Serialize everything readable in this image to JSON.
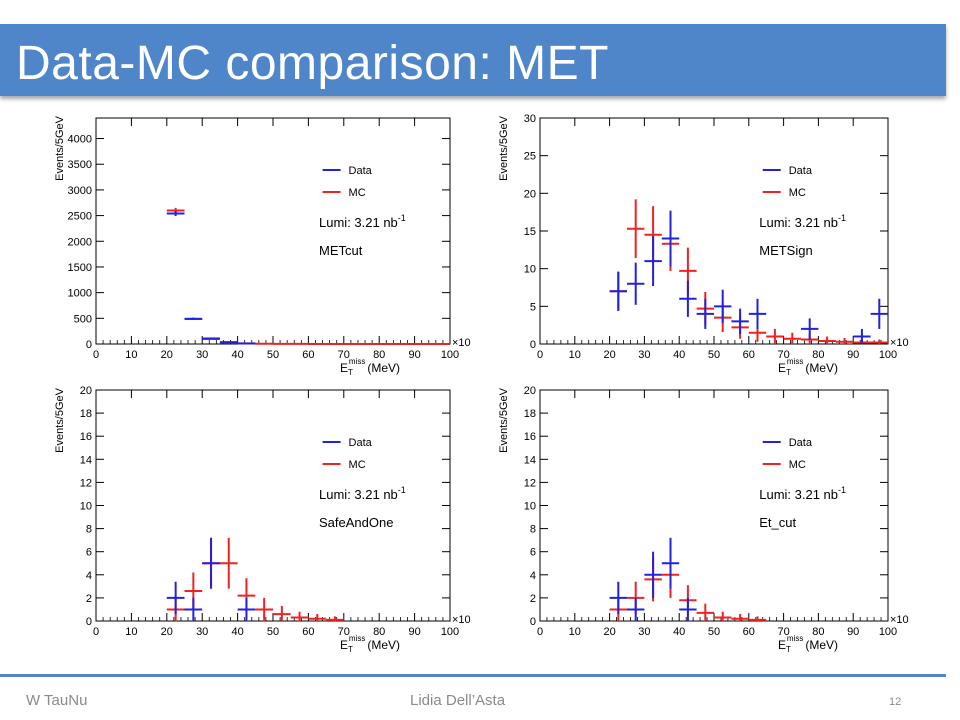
{
  "slide": {
    "title": "Data-MC comparison: MET",
    "footer_left": "W TauNu",
    "footer_center": "Lidia Dell’Asta",
    "page_number": "12",
    "accent_color": "#4f86c9"
  },
  "chart_data": [
    {
      "type": "errorbar",
      "ylabel": "Events/5GeV",
      "xlabel_main": "E",
      "xlabel_sub": "T",
      "xlabel_sup": "miss",
      "xlabel_unit": "(MeV)",
      "x_multiplier": "×10",
      "xlim": [
        0,
        100
      ],
      "ylim": [
        0,
        4400
      ],
      "xticks": [
        0,
        10,
        20,
        30,
        40,
        50,
        60,
        70,
        80,
        90,
        100
      ],
      "yticks": [
        0,
        500,
        1000,
        1500,
        2000,
        2500,
        3000,
        3500,
        4000
      ],
      "legend": [
        {
          "name": "Data",
          "color": "#2222dd"
        },
        {
          "name": "MC",
          "color": "#ee2222"
        }
      ],
      "annotations": [
        "Lumi: 3.21 nb",
        "METcut"
      ],
      "lumi_sup": "-1",
      "series": [
        {
          "name": "Data",
          "color": "#2222dd",
          "x": [
            22.5,
            27.5,
            32.5,
            37.5,
            42.5
          ],
          "y": [
            2540,
            490,
            100,
            35,
            10
          ],
          "yerr": [
            50,
            22,
            10,
            6,
            3
          ]
        },
        {
          "name": "MC",
          "color": "#ee2222",
          "x": [
            22.5,
            27.5,
            32.5,
            37.5,
            42.5,
            47.5,
            52.5,
            57.5,
            62.5,
            67.5,
            72.5,
            77.5,
            82.5,
            87.5,
            92.5,
            97.5
          ],
          "y": [
            2600,
            490,
            110,
            35,
            12,
            5,
            3,
            2,
            1,
            1,
            1,
            1,
            1,
            1,
            1,
            1
          ],
          "yerr": [
            50,
            22,
            10,
            6,
            3,
            2,
            1,
            1,
            1,
            1,
            1,
            1,
            1,
            1,
            1,
            1
          ]
        }
      ]
    },
    {
      "type": "errorbar",
      "ylabel": "Events/5GeV",
      "xlabel_main": "E",
      "xlabel_sub": "T",
      "xlabel_sup": "miss",
      "xlabel_unit": "(MeV)",
      "x_multiplier": "×10",
      "xlim": [
        0,
        100
      ],
      "ylim": [
        0,
        30
      ],
      "xticks": [
        0,
        10,
        20,
        30,
        40,
        50,
        60,
        70,
        80,
        90,
        100
      ],
      "yticks": [
        0,
        5,
        10,
        15,
        20,
        25,
        30
      ],
      "legend": [
        {
          "name": "Data",
          "color": "#2222dd"
        },
        {
          "name": "MC",
          "color": "#ee2222"
        }
      ],
      "annotations": [
        "Lumi: 3.21 nb",
        "METSign"
      ],
      "lumi_sup": "-1",
      "series": [
        {
          "name": "Data",
          "color": "#2222dd",
          "x": [
            22.5,
            27.5,
            32.5,
            37.5,
            42.5,
            47.5,
            52.5,
            57.5,
            62.5,
            77.5,
            92.5,
            97.5
          ],
          "y": [
            7,
            8,
            11,
            14,
            6,
            4,
            5,
            3,
            4,
            2,
            1,
            4
          ],
          "yerr": [
            2.6,
            2.8,
            3.3,
            3.7,
            2.4,
            2,
            2.2,
            1.7,
            2,
            1.4,
            1,
            2
          ]
        },
        {
          "name": "MC",
          "color": "#ee2222",
          "x": [
            22.5,
            27.5,
            32.5,
            37.5,
            42.5,
            47.5,
            52.5,
            57.5,
            62.5,
            67.5,
            72.5,
            77.5,
            82.5,
            87.5,
            92.5,
            97.5
          ],
          "y": [
            7,
            15.3,
            14.5,
            13.3,
            9.7,
            4.7,
            3.5,
            2.2,
            1.5,
            1,
            0.7,
            0.6,
            0.4,
            0.3,
            0.2,
            0.2
          ],
          "yerr": [
            2.6,
            3.9,
            3.8,
            3.6,
            3.1,
            2.2,
            1.9,
            1.5,
            1.2,
            1,
            0.8,
            0.7,
            0.6,
            0.5,
            0.4,
            0.4
          ]
        }
      ]
    },
    {
      "type": "errorbar",
      "ylabel": "Events/5GeV",
      "xlabel_main": "E",
      "xlabel_sub": "T",
      "xlabel_sup": "miss",
      "xlabel_unit": "(MeV)",
      "x_multiplier": "×10",
      "xlim": [
        0,
        100
      ],
      "ylim": [
        0,
        20
      ],
      "xticks": [
        0,
        10,
        20,
        30,
        40,
        50,
        60,
        70,
        80,
        90,
        100
      ],
      "yticks": [
        0,
        2,
        4,
        6,
        8,
        10,
        12,
        14,
        16,
        18,
        20
      ],
      "legend": [
        {
          "name": "Data",
          "color": "#2222dd"
        },
        {
          "name": "MC",
          "color": "#ee2222"
        }
      ],
      "annotations": [
        "Lumi: 3.21 nb",
        "SafeAndOne"
      ],
      "lumi_sup": "-1",
      "series": [
        {
          "name": "Data",
          "color": "#2222dd",
          "x": [
            22.5,
            27.5,
            32.5,
            42.5
          ],
          "y": [
            2,
            1,
            5,
            1
          ],
          "yerr": [
            1.4,
            1,
            2.2,
            1
          ]
        },
        {
          "name": "MC",
          "color": "#ee2222",
          "x": [
            22.5,
            27.5,
            32.5,
            37.5,
            42.5,
            47.5,
            52.5,
            57.5,
            62.5,
            67.5
          ],
          "y": [
            1,
            2.6,
            5,
            5,
            2.2,
            1,
            0.6,
            0.3,
            0.2,
            0.1
          ],
          "yerr": [
            1,
            1.6,
            2.2,
            2.2,
            1.5,
            1,
            0.7,
            0.5,
            0.4,
            0.3
          ]
        }
      ]
    },
    {
      "type": "errorbar",
      "ylabel": "Events/5GeV",
      "xlabel_main": "E",
      "xlabel_sub": "T",
      "xlabel_sup": "miss",
      "xlabel_unit": "(MeV)",
      "x_multiplier": "×10",
      "xlim": [
        0,
        100
      ],
      "ylim": [
        0,
        20
      ],
      "xticks": [
        0,
        10,
        20,
        30,
        40,
        50,
        60,
        70,
        80,
        90,
        100
      ],
      "yticks": [
        0,
        2,
        4,
        6,
        8,
        10,
        12,
        14,
        16,
        18,
        20
      ],
      "legend": [
        {
          "name": "Data",
          "color": "#2222dd"
        },
        {
          "name": "MC",
          "color": "#ee2222"
        }
      ],
      "annotations": [
        "Lumi: 3.21 nb",
        "Et_cut"
      ],
      "lumi_sup": "-1",
      "series": [
        {
          "name": "Data",
          "color": "#2222dd",
          "x": [
            22.5,
            27.5,
            32.5,
            37.5,
            42.5
          ],
          "y": [
            2,
            1,
            4,
            5,
            1
          ],
          "yerr": [
            1.4,
            1,
            2,
            2.2,
            1
          ]
        },
        {
          "name": "MC",
          "color": "#ee2222",
          "x": [
            22.5,
            27.5,
            32.5,
            37.5,
            42.5,
            47.5,
            52.5,
            57.5,
            62.5
          ],
          "y": [
            1,
            2,
            3.6,
            4,
            1.8,
            0.7,
            0.3,
            0.2,
            0.1
          ],
          "yerr": [
            1,
            1.4,
            1.9,
            2,
            1.3,
            0.8,
            0.5,
            0.4,
            0.3
          ]
        }
      ]
    }
  ]
}
